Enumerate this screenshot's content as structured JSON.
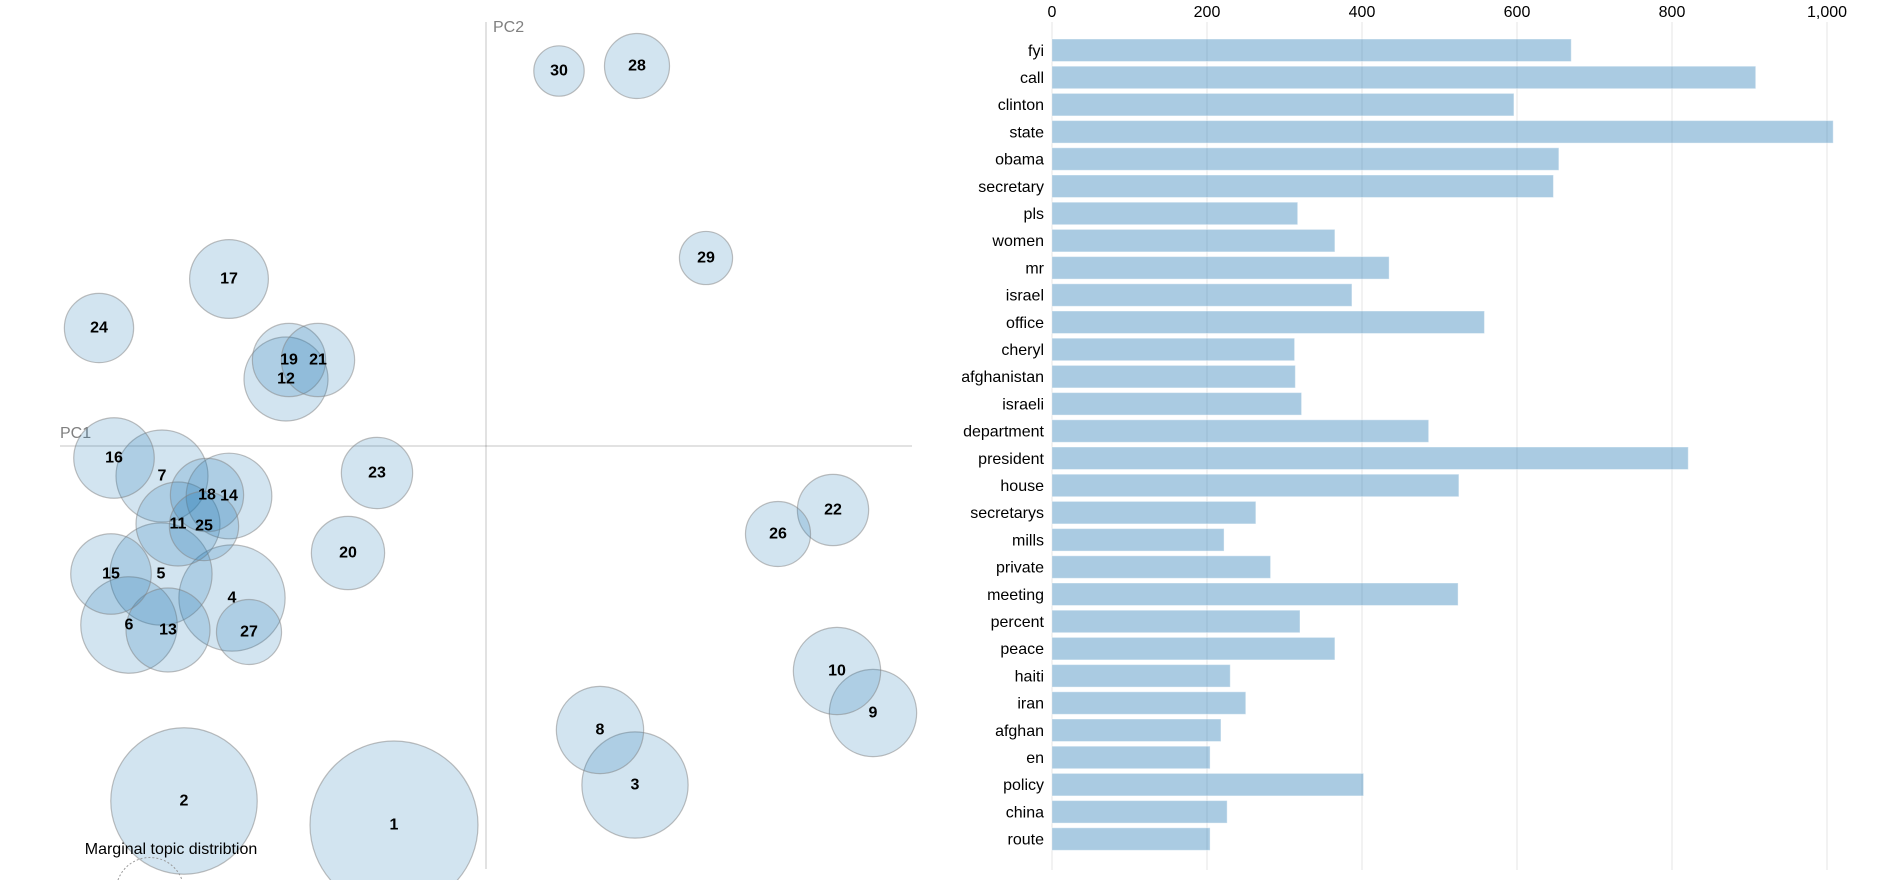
{
  "chart_data": [
    {
      "type": "scatter",
      "title": "",
      "xlabel": "PC1",
      "ylabel": "PC2",
      "legend_title": "Marginal topic distribtion",
      "size_metric": "marginal topic percent (approx.)",
      "topics": [
        {
          "id": "1",
          "pc1": -0.92,
          "pc2": -3.79,
          "pct": 10.0
        },
        {
          "id": "2",
          "pc1": -3.02,
          "pc2": -3.55,
          "pct": 7.6
        },
        {
          "id": "3",
          "pc1": 1.49,
          "pc2": -3.39,
          "pct": 4.0
        },
        {
          "id": "4",
          "pc1": -2.54,
          "pc2": -1.52,
          "pct": 4.0
        },
        {
          "id": "5",
          "pc1": -3.25,
          "pc2": -1.28,
          "pct": 3.7
        },
        {
          "id": "6",
          "pc1": -3.57,
          "pc2": -1.79,
          "pct": 3.3
        },
        {
          "id": "7",
          "pc1": -3.24,
          "pc2": -0.3,
          "pct": 3.0
        },
        {
          "id": "8",
          "pc1": 1.14,
          "pc2": -2.84,
          "pct": 2.7
        },
        {
          "id": "9",
          "pc1": 3.87,
          "pc2": -2.67,
          "pct": 2.7
        },
        {
          "id": "10",
          "pc1": 3.51,
          "pc2": -2.25,
          "pct": 2.7
        },
        {
          "id": "11",
          "pc1": -3.08,
          "pc2": -0.78,
          "pct": 2.5
        },
        {
          "id": "12",
          "pc1": -2.0,
          "pc2": 0.67,
          "pct": 2.5
        },
        {
          "id": "13",
          "pc1": -3.18,
          "pc2": -1.84,
          "pct": 2.5
        },
        {
          "id": "14",
          "pc1": -2.57,
          "pc2": -0.5,
          "pct": 2.6
        },
        {
          "id": "15",
          "pc1": -3.75,
          "pc2": -1.28,
          "pct": 2.3
        },
        {
          "id": "16",
          "pc1": -3.72,
          "pc2": -0.12,
          "pct": 2.3
        },
        {
          "id": "17",
          "pc1": -2.57,
          "pc2": 1.67,
          "pct": 2.2
        },
        {
          "id": "18",
          "pc1": -2.79,
          "pc2": -0.49,
          "pct": 1.9
        },
        {
          "id": "19",
          "pc1": -1.97,
          "pc2": 0.86,
          "pct": 1.9
        },
        {
          "id": "20",
          "pc1": -1.38,
          "pc2": -1.07,
          "pct": 1.9
        },
        {
          "id": "21",
          "pc1": -1.68,
          "pc2": 0.86,
          "pct": 1.9
        },
        {
          "id": "22",
          "pc1": 3.47,
          "pc2": -0.64,
          "pct": 1.8
        },
        {
          "id": "23",
          "pc1": -1.09,
          "pc2": -0.27,
          "pct": 1.8
        },
        {
          "id": "24",
          "pc1": -3.87,
          "pc2": 1.18,
          "pct": 1.7
        },
        {
          "id": "25",
          "pc1": -2.82,
          "pc2": -0.8,
          "pct": 1.7
        },
        {
          "id": "26",
          "pc1": 2.92,
          "pc2": -0.88,
          "pct": 1.5
        },
        {
          "id": "27",
          "pc1": -2.37,
          "pc2": -1.86,
          "pct": 1.5
        },
        {
          "id": "28",
          "pc1": 1.51,
          "pc2": 3.8,
          "pct": 1.5
        },
        {
          "id": "29",
          "pc1": 2.2,
          "pc2": 1.88,
          "pct": 1.0
        },
        {
          "id": "30",
          "pc1": 0.73,
          "pc2": 3.75,
          "pct": 0.9
        }
      ]
    },
    {
      "type": "bar",
      "orientation": "horizontal",
      "title": "",
      "xlim": [
        0,
        1000
      ],
      "x_ticks": [
        "0",
        "200",
        "400",
        "600",
        "800",
        "1,000"
      ],
      "x_tick_values": [
        0,
        200,
        400,
        600,
        800,
        1000
      ],
      "grid": true,
      "categories": [
        "fyi",
        "call",
        "clinton",
        "state",
        "obama",
        "secretary",
        "pls",
        "women",
        "mr",
        "israel",
        "office",
        "cheryl",
        "afghanistan",
        "israeli",
        "department",
        "president",
        "house",
        "secretarys",
        "mills",
        "private",
        "meeting",
        "percent",
        "peace",
        "haiti",
        "iran",
        "afghan",
        "en",
        "policy",
        "china",
        "route"
      ],
      "values": [
        670,
        908,
        596,
        1008,
        654,
        647,
        317,
        365,
        435,
        387,
        558,
        313,
        314,
        322,
        486,
        821,
        525,
        263,
        222,
        282,
        524,
        320,
        365,
        230,
        250,
        218,
        204,
        402,
        226,
        204
      ]
    }
  ],
  "colors": {
    "topic_fill": "#1f77b4",
    "bar_fill": "#1f77b4"
  }
}
